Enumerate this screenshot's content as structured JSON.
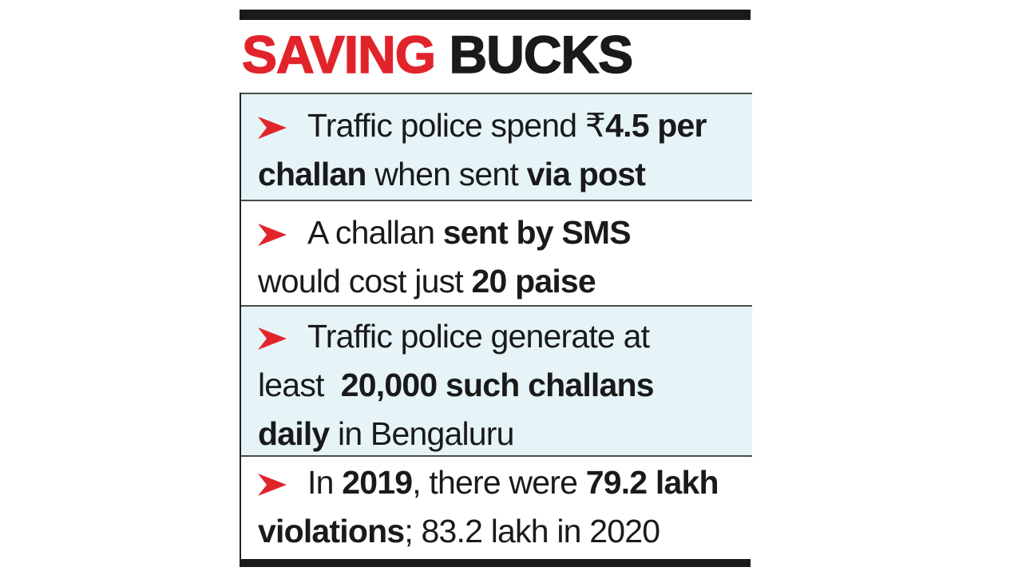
{
  "headline": {
    "word1": "SAVING",
    "word2": "BUCKS"
  },
  "colors": {
    "accent_red": "#e1242b",
    "text": "#1a1a1a",
    "shade": "#e6f4f7"
  },
  "items": [
    {
      "line1": {
        "a": "Traffic police spend ₹",
        "b": "4.5 per"
      },
      "line2": {
        "a": "challan",
        "b": " when sent ",
        "c": "via post"
      }
    },
    {
      "line1": {
        "a": "A challan ",
        "b": "sent by SMS"
      },
      "line2": {
        "a": "would cost just ",
        "b": "20 paise"
      }
    },
    {
      "line1": {
        "a": "Traffic police generate at"
      },
      "line2": {
        "a": "least  ",
        "b": "20,000 such challans"
      },
      "line3": {
        "a": "daily",
        "b": " in Bengaluru"
      }
    },
    {
      "line1": {
        "a": "In ",
        "b": "2019",
        "c": ", there were ",
        "d": "79.2 lakh"
      },
      "line2": {
        "a": "violations",
        "b": "; 83.2 lakh in 2020"
      }
    }
  ]
}
